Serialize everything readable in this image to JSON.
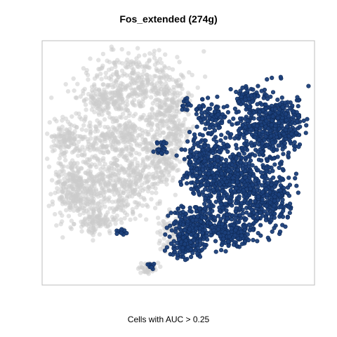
{
  "chart_data": {
    "type": "scatter",
    "title": "Fos_extended (274g)",
    "xlabel": "Cells with AUC > 0.25",
    "ylabel": "",
    "grid": false,
    "axes_shown": false,
    "colors": {
      "background_cells": "#cccccc",
      "active_cells": "#1b3f7a",
      "active_edge": "#0f2a57",
      "frame": "#bdbdbd"
    },
    "series": [
      {
        "role": "background",
        "clusters": [
          {
            "cx": 195,
            "cy": 115,
            "rx": 70,
            "ry": 42,
            "n": 320
          },
          {
            "cx": 150,
            "cy": 140,
            "rx": 40,
            "ry": 22,
            "n": 140
          },
          {
            "cx": 240,
            "cy": 150,
            "rx": 35,
            "ry": 30,
            "n": 160
          },
          {
            "cx": 170,
            "cy": 195,
            "rx": 80,
            "ry": 35,
            "n": 360
          },
          {
            "cx": 95,
            "cy": 195,
            "rx": 25,
            "ry": 18,
            "n": 90
          },
          {
            "cx": 110,
            "cy": 265,
            "rx": 40,
            "ry": 45,
            "n": 360
          },
          {
            "cx": 175,
            "cy": 260,
            "rx": 50,
            "ry": 50,
            "n": 340
          },
          {
            "cx": 140,
            "cy": 315,
            "rx": 30,
            "ry": 22,
            "n": 120
          },
          {
            "cx": 230,
            "cy": 230,
            "rx": 25,
            "ry": 35,
            "n": 130
          },
          {
            "cx": 250,
            "cy": 190,
            "rx": 18,
            "ry": 20,
            "n": 60
          },
          {
            "cx": 240,
            "cy": 330,
            "rx": 15,
            "ry": 25,
            "n": 60
          },
          {
            "cx": 210,
            "cy": 382,
            "rx": 13,
            "ry": 10,
            "n": 40
          }
        ]
      },
      {
        "role": "active",
        "clusters": [
          {
            "cx": 385,
            "cy": 180,
            "rx": 48,
            "ry": 45,
            "n": 520
          },
          {
            "cx": 350,
            "cy": 135,
            "rx": 15,
            "ry": 18,
            "n": 50
          },
          {
            "cx": 305,
            "cy": 165,
            "rx": 25,
            "ry": 20,
            "n": 90
          },
          {
            "cx": 330,
            "cy": 255,
            "rx": 45,
            "ry": 55,
            "n": 420
          },
          {
            "cx": 380,
            "cy": 280,
            "rx": 35,
            "ry": 45,
            "n": 300
          },
          {
            "cx": 290,
            "cy": 235,
            "rx": 30,
            "ry": 40,
            "n": 220
          },
          {
            "cx": 280,
            "cy": 320,
            "rx": 35,
            "ry": 30,
            "n": 260
          },
          {
            "cx": 330,
            "cy": 330,
            "rx": 30,
            "ry": 20,
            "n": 160
          },
          {
            "cx": 265,
            "cy": 350,
            "rx": 25,
            "ry": 18,
            "n": 110
          },
          {
            "cx": 230,
            "cy": 210,
            "rx": 12,
            "ry": 14,
            "n": 25
          },
          {
            "cx": 175,
            "cy": 330,
            "rx": 10,
            "ry": 6,
            "n": 12
          },
          {
            "cx": 215,
            "cy": 378,
            "rx": 8,
            "ry": 6,
            "n": 10
          },
          {
            "cx": 265,
            "cy": 150,
            "rx": 8,
            "ry": 10,
            "n": 15
          }
        ]
      }
    ]
  }
}
